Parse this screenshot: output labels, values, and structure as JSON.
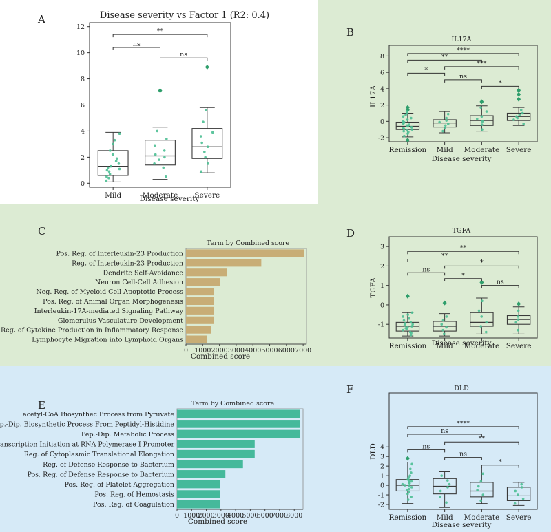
{
  "colors": {
    "panel_white": "#ffffff",
    "panel_green": "#dcebd3",
    "panel_blue": "#d6eaf7",
    "dot": "#4dbf94",
    "outlier": "#2e9e6b",
    "bar_tan": "#c8ad76",
    "bar_teal": "#45b99b"
  },
  "chart_data": [
    {
      "id": "A",
      "letter": "A",
      "type": "box",
      "title": "Disease severity vs Factor 1 (R2: 0.4)",
      "xlabel": "Disease severity",
      "ylabel": "",
      "ylim": [
        -0.3,
        12.3
      ],
      "yticks": [
        0,
        2,
        4,
        6,
        8,
        10,
        12
      ],
      "categories": [
        "Mild",
        "Moderate",
        "Severe"
      ],
      "boxes": [
        {
          "min": 0.1,
          "q1": 0.6,
          "median": 1.3,
          "q3": 2.5,
          "max": 3.9,
          "outliers": []
        },
        {
          "min": 0.3,
          "q1": 1.4,
          "median": 2.1,
          "q3": 3.3,
          "max": 4.3,
          "outliers": [
            7.1
          ]
        },
        {
          "min": 0.8,
          "q1": 1.9,
          "median": 2.8,
          "q3": 4.2,
          "max": 5.8,
          "outliers": [
            8.9
          ]
        }
      ],
      "points": [
        [
          0.2,
          0.4,
          0.5,
          0.7,
          0.9,
          1.0,
          1.1,
          1.2,
          1.3,
          1.5,
          1.7,
          1.9,
          2.2,
          2.5,
          3.0,
          3.3,
          3.8
        ],
        [
          0.5,
          1.2,
          1.5,
          1.8,
          2.0,
          2.2,
          2.5,
          2.9,
          3.4,
          4.0
        ],
        [
          0.9,
          1.5,
          2.0,
          2.4,
          2.8,
          3.1,
          3.6,
          3.9,
          4.7,
          5.6
        ]
      ],
      "brackets": [
        {
          "from": 0,
          "to": 1,
          "y": 10.4,
          "label": "ns"
        },
        {
          "from": 1,
          "to": 2,
          "y": 9.6,
          "label": "ns"
        },
        {
          "from": 0,
          "to": 2,
          "y": 11.4,
          "label": "**"
        }
      ]
    },
    {
      "id": "B",
      "letter": "B",
      "type": "box",
      "title": "IL17A",
      "xlabel": "Disease severity",
      "ylabel": "IL17A",
      "ylim": [
        -2.5,
        9.3
      ],
      "yticks": [
        -2,
        0,
        2,
        4,
        6,
        8
      ],
      "categories": [
        "Remission",
        "Mild",
        "Moderate",
        "Severe"
      ],
      "boxes": [
        {
          "min": -1.9,
          "q1": -1.0,
          "median": -0.6,
          "q3": -0.1,
          "max": 1.0,
          "outliers": [
            -2.3,
            1.4,
            1.7
          ]
        },
        {
          "min": -1.4,
          "q1": -0.7,
          "median": -0.2,
          "q3": 0.2,
          "max": 1.2,
          "outliers": []
        },
        {
          "min": -1.2,
          "q1": -0.5,
          "median": 0.1,
          "q3": 0.7,
          "max": 1.9,
          "outliers": [
            2.4
          ]
        },
        {
          "min": -0.5,
          "q1": 0.1,
          "median": 0.6,
          "q3": 1.0,
          "max": 1.7,
          "outliers": [
            2.7,
            3.3,
            3.8
          ]
        }
      ],
      "points": [
        [
          -1.8,
          -1.5,
          -1.3,
          -1.2,
          -1.1,
          -1.0,
          -0.9,
          -0.8,
          -0.7,
          -0.6,
          -0.5,
          -0.4,
          -0.3,
          -0.2,
          -0.1,
          0.0,
          0.2,
          0.4,
          0.6,
          0.8,
          1.0,
          1.2
        ],
        [
          -1.2,
          -0.8,
          -0.5,
          -0.3,
          -0.1,
          0.1,
          0.4,
          0.9
        ],
        [
          -1.0,
          -0.4,
          0.0,
          0.3,
          0.6,
          1.2,
          1.7
        ],
        [
          -0.3,
          0.2,
          0.4,
          0.6,
          0.8,
          1.0,
          1.4
        ]
      ],
      "brackets": [
        {
          "from": 0,
          "to": 1,
          "y": 5.9,
          "label": "*"
        },
        {
          "from": 1,
          "to": 2,
          "y": 5.1,
          "label": "ns"
        },
        {
          "from": 2,
          "to": 3,
          "y": 4.3,
          "label": "*"
        },
        {
          "from": 0,
          "to": 2,
          "y": 7.5,
          "label": "**"
        },
        {
          "from": 1,
          "to": 3,
          "y": 6.7,
          "label": "***"
        },
        {
          "from": 0,
          "to": 3,
          "y": 8.3,
          "label": "****"
        }
      ]
    },
    {
      "id": "D",
      "letter": "D",
      "type": "box",
      "title": "TGFA",
      "xlabel": "Disease severity",
      "ylabel": "TGFA",
      "ylim": [
        -1.7,
        3.5
      ],
      "yticks": [
        -1,
        0,
        1,
        2,
        3
      ],
      "categories": [
        "Remission",
        "Mild",
        "Moderate",
        "Severe"
      ],
      "boxes": [
        {
          "min": -1.6,
          "q1": -1.35,
          "median": -1.1,
          "q3": -0.9,
          "max": -0.4,
          "outliers": [
            0.45
          ]
        },
        {
          "min": -1.6,
          "q1": -1.35,
          "median": -1.1,
          "q3": -0.85,
          "max": -0.45,
          "outliers": [
            0.1
          ]
        },
        {
          "min": -1.5,
          "q1": -1.1,
          "median": -0.9,
          "q3": -0.4,
          "max": 0.35,
          "outliers": [
            1.15
          ]
        },
        {
          "min": -1.5,
          "q1": -1.0,
          "median": -0.75,
          "q3": -0.55,
          "max": -0.1,
          "outliers": [
            0.05
          ]
        }
      ],
      "points": [
        [
          -1.55,
          -1.45,
          -1.4,
          -1.3,
          -1.25,
          -1.2,
          -1.15,
          -1.1,
          -1.05,
          -1.0,
          -0.95,
          -0.9,
          -0.8,
          -0.7,
          -0.6,
          -0.5,
          -0.4
        ],
        [
          -1.5,
          -1.3,
          -1.15,
          -1.0,
          -0.8,
          -0.6
        ],
        [
          -1.4,
          -1.1,
          -0.9,
          -0.6,
          -0.3,
          0.2
        ],
        [
          -1.3,
          -0.9,
          -0.75,
          -0.6,
          -0.3
        ]
      ],
      "brackets": [
        {
          "from": 0,
          "to": 1,
          "y": 1.65,
          "label": "ns"
        },
        {
          "from": 1,
          "to": 2,
          "y": 1.35,
          "label": "*"
        },
        {
          "from": 2,
          "to": 3,
          "y": 1.0,
          "label": "ns"
        },
        {
          "from": 0,
          "to": 2,
          "y": 2.35,
          "label": "**"
        },
        {
          "from": 1,
          "to": 3,
          "y": 2.0,
          "label": "*"
        },
        {
          "from": 0,
          "to": 3,
          "y": 2.75,
          "label": "**"
        }
      ]
    },
    {
      "id": "F",
      "letter": "F",
      "type": "box",
      "title": "DLD",
      "xlabel": "Disease severity",
      "ylabel": "DLD",
      "ylim": [
        -2.5,
        9.6
      ],
      "yticks": [
        -2,
        -1,
        0,
        1,
        2,
        3,
        4
      ],
      "categories": [
        "Remission",
        "Mild",
        "Moderate",
        "Severe"
      ],
      "boxes": [
        {
          "min": -1.9,
          "q1": -0.6,
          "median": 0.0,
          "q3": 0.6,
          "max": 2.4,
          "outliers": [
            2.8
          ]
        },
        {
          "min": -2.3,
          "q1": -0.9,
          "median": -0.1,
          "q3": 0.7,
          "max": 1.4,
          "outliers": []
        },
        {
          "min": -1.9,
          "q1": -1.2,
          "median": -0.6,
          "q3": 0.3,
          "max": 1.9,
          "outliers": []
        },
        {
          "min": -2.1,
          "q1": -1.6,
          "median": -1.1,
          "q3": -0.2,
          "max": 0.3,
          "outliers": []
        }
      ],
      "points": [
        [
          -1.5,
          -1.2,
          -0.9,
          -0.7,
          -0.5,
          -0.4,
          -0.2,
          -0.1,
          0.0,
          0.1,
          0.2,
          0.3,
          0.4,
          0.5,
          0.6,
          0.8,
          1.0,
          1.3,
          1.7,
          2.2
        ],
        [
          -1.8,
          -1.2,
          -0.6,
          -0.2,
          0.1,
          0.5,
          1.0
        ],
        [
          -1.6,
          -1.0,
          -0.5,
          -0.1,
          0.4,
          1.2
        ],
        [
          -1.9,
          -1.4,
          -1.0,
          -0.6,
          -0.2,
          0.1
        ]
      ],
      "brackets": [
        {
          "from": 0,
          "to": 1,
          "y": 3.7,
          "label": "ns"
        },
        {
          "from": 1,
          "to": 2,
          "y": 2.9,
          "label": "ns"
        },
        {
          "from": 2,
          "to": 3,
          "y": 2.1,
          "label": "*"
        },
        {
          "from": 0,
          "to": 2,
          "y": 5.3,
          "label": "ns"
        },
        {
          "from": 1,
          "to": 3,
          "y": 4.5,
          "label": "**"
        },
        {
          "from": 0,
          "to": 3,
          "y": 6.1,
          "label": "****"
        }
      ]
    },
    {
      "id": "C",
      "letter": "C",
      "type": "barh",
      "title": "Term by Combined score",
      "xlabel": "Combined score",
      "xlim": [
        0,
        7200
      ],
      "xticks": [
        0,
        1000,
        2000,
        3000,
        4000,
        5000,
        6000,
        7000
      ],
      "categories": [
        "Pos. Reg. of Interleukin-23 Production",
        "Reg. of Interleukin-23 Production",
        "Dendrite Self-Avoidance",
        "Neuron Cell-Cell Adhesion",
        "Neg. Reg. of Myeloid Cell Apoptotic Process",
        "Pos. Reg. of Animal Organ Morphogenesis",
        "Interleukin-17A-mediated Signaling Pathway",
        "Glomerulus Vasculature Development",
        "Pos. Reg. of Cytokine Production in Inflammatory Response",
        "Lymphocyte Migration into Lymphoid Organs"
      ],
      "values": [
        7050,
        4500,
        2450,
        2050,
        1680,
        1680,
        1680,
        1650,
        1500,
        1250
      ]
    },
    {
      "id": "E",
      "letter": "E",
      "type": "barh",
      "title": "Term by Combined score",
      "xlabel": "Combined score",
      "xlim": [
        0,
        8600
      ],
      "xticks": [
        0,
        1000,
        2000,
        3000,
        4000,
        5000,
        6000,
        7000,
        8000
      ],
      "categories": [
        "acetyl-CoA Biosynthec Process from Pyruvate",
        "Pep.-Dip. Biosynthetic Process From Peptidyl-Histidine",
        "Pep.-Dip. Metabolic Process",
        "Transcription Initiation at RNA Polymerase I Promoter",
        "Reg. of Cytoplasmic Translational Elongation",
        "Reg. of Defense Response to Bacterium",
        "Pos. Reg. of Defense Response to Bacterium",
        "Pos. Reg. of Platelet Aggregation",
        "Pos. Reg. of Hemostasis",
        "Pos. Reg. of Coagulation"
      ],
      "values": [
        8400,
        8400,
        8400,
        5300,
        5300,
        4500,
        3300,
        2950,
        2950,
        2950
      ]
    }
  ]
}
